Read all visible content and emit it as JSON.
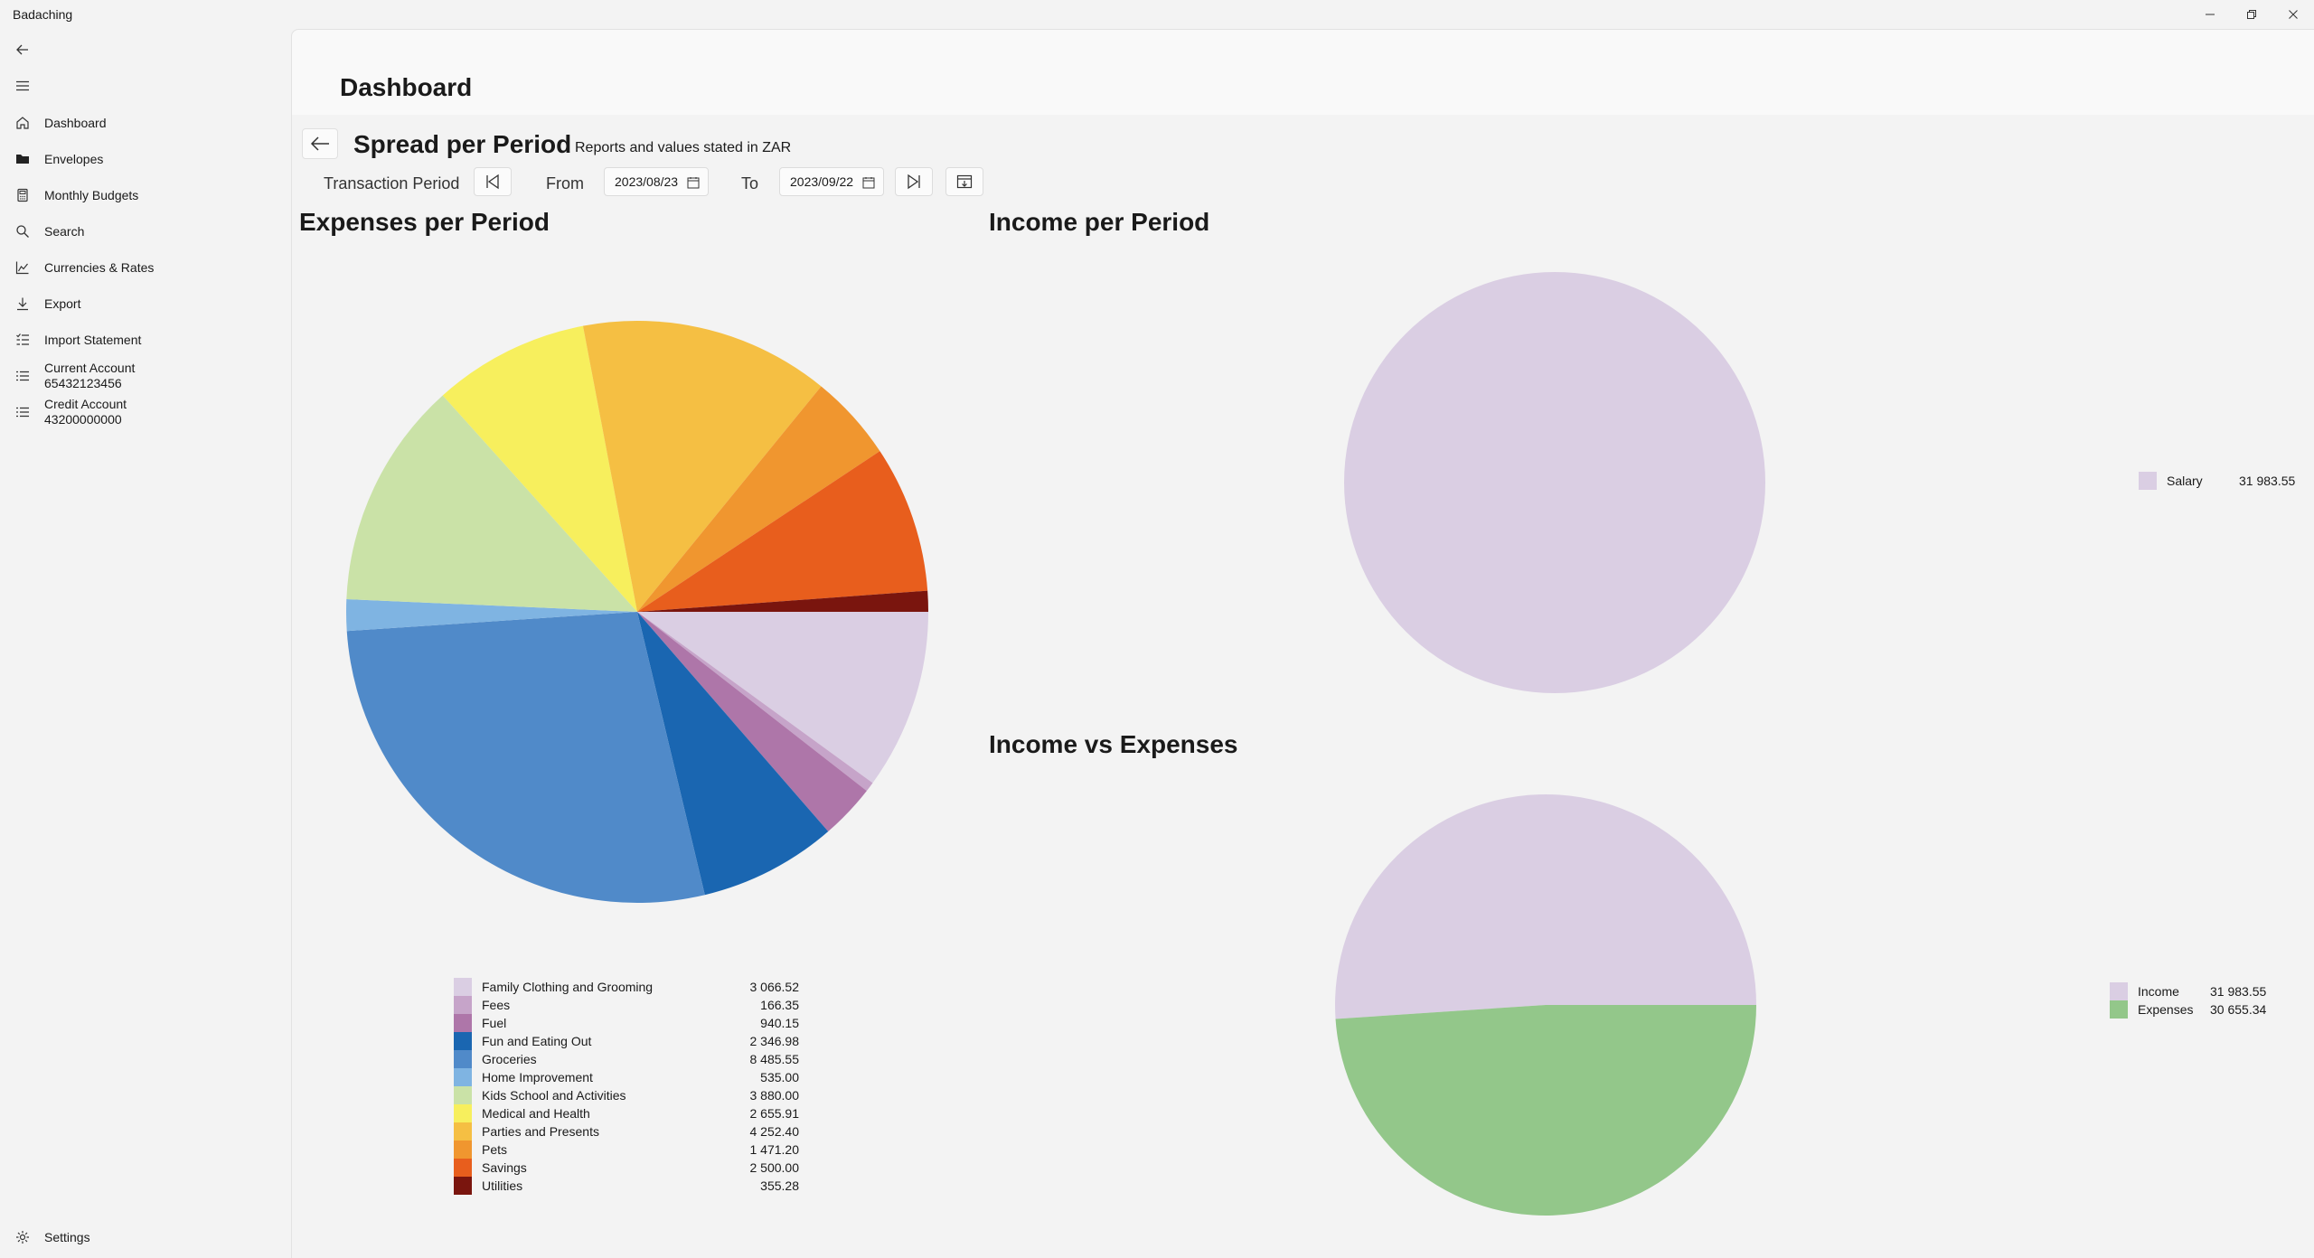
{
  "app": {
    "title": "Badaching",
    "window_controls": [
      "minimize-icon",
      "restore-icon",
      "close-icon"
    ]
  },
  "sidebar": {
    "back_icon": "arrow-left-icon",
    "menu_icon": "hamburger-icon",
    "items": [
      {
        "label": "Dashboard",
        "icon": "home-icon"
      },
      {
        "label": "Envelopes",
        "icon": "folder-icon"
      },
      {
        "label": "Monthly Budgets",
        "icon": "calculator-icon"
      },
      {
        "label": "Search",
        "icon": "search-icon"
      },
      {
        "label": "Currencies & Rates",
        "icon": "chart-icon"
      },
      {
        "label": "Export",
        "icon": "download-icon"
      },
      {
        "label": "Import Statement",
        "icon": "import-list-icon"
      },
      {
        "label": "Current Account",
        "sublabel": "65432123456",
        "icon": "list-icon"
      },
      {
        "label": "Credit Account",
        "sublabel": "43200000000",
        "icon": "list-icon"
      }
    ],
    "settings": {
      "label": "Settings",
      "icon": "gear-icon"
    }
  },
  "header": {
    "title": "Dashboard"
  },
  "section": {
    "title": "Spread per Period",
    "subtitle": "Reports and values stated in ZAR"
  },
  "period": {
    "label": "Transaction Period",
    "from_label": "From",
    "from_value": "2023/08/23",
    "to_label": "To",
    "to_value": "2023/09/22"
  },
  "colors": {
    "accent": "#005fb8",
    "background": "#f3f3f3"
  },
  "chart_data": [
    {
      "type": "pie",
      "title": "Expenses per Period",
      "categories": [
        "Family Clothing and Grooming",
        "Fees",
        "Fuel",
        "Fun and Eating Out",
        "Groceries",
        "Home Improvement",
        "Kids School and Activities",
        "Medical and Health",
        "Parties and Presents",
        "Pets",
        "Savings",
        "Utilities"
      ],
      "values": [
        3066.52,
        166.35,
        940.15,
        2346.98,
        8485.55,
        535.0,
        3880.0,
        2655.91,
        4252.4,
        1471.2,
        2500.0,
        355.28
      ],
      "labels": [
        "3 066.52",
        "166.35",
        "940.15",
        "2 346.98",
        "8 485.55",
        "535.00",
        "3 880.00",
        "2 655.91",
        "4 252.40",
        "1 471.20",
        "2 500.00",
        "355.28"
      ],
      "colors": [
        "#dacee3",
        "#c6a4c9",
        "#ae76a9",
        "#1a66b1",
        "#508ac9",
        "#7fb4e2",
        "#cae2a7",
        "#f7ef5d",
        "#f5bf43",
        "#f0962f",
        "#e85e1d",
        "#7a150e"
      ],
      "legend": "bottom"
    },
    {
      "type": "pie",
      "title": "Income per Period",
      "categories": [
        "Salary"
      ],
      "values": [
        31983.55
      ],
      "labels": [
        "31 983.55"
      ],
      "colors": [
        "#dacee3"
      ],
      "legend": "right"
    },
    {
      "type": "pie",
      "title": "Income vs Expenses",
      "categories": [
        "Income",
        "Expenses"
      ],
      "values": [
        31983.55,
        30655.34
      ],
      "labels": [
        "31 983.55",
        "30 655.34"
      ],
      "colors": [
        "#dacee3",
        "#93c78a"
      ],
      "legend": "right"
    }
  ]
}
